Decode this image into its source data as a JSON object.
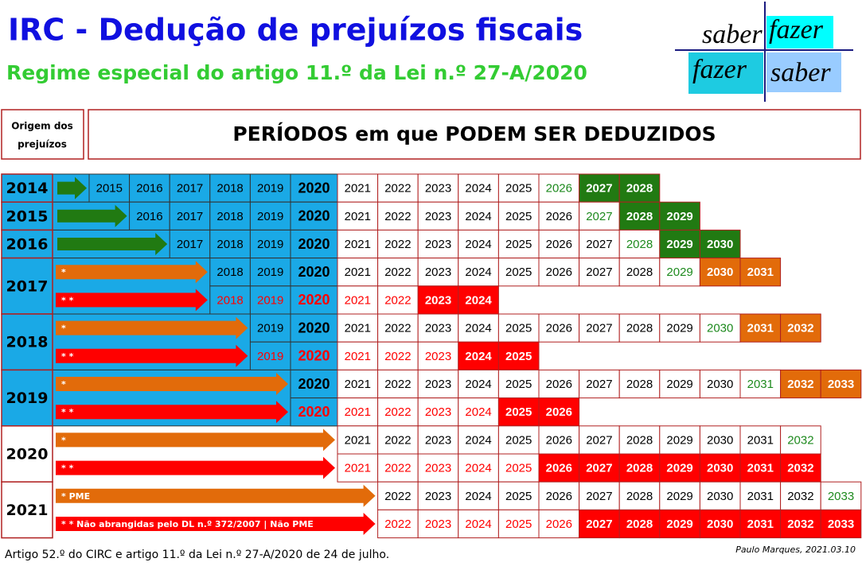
{
  "header": {
    "title": "IRC - Dedução de prejuízos fiscais",
    "subtitle": "Regime especial do artigo 11.º da Lei n.º 27-A/2020"
  },
  "logo": {
    "top_left": "saber",
    "top_right": "fazer",
    "bottom_left": "fazer",
    "bottom_right": "saber"
  },
  "table": {
    "origin_header": [
      "Origem dos",
      "prejuízos"
    ],
    "periods_header": "PERÍODOS em que PODEM SER DEDUZIDOS",
    "rows": [
      {
        "origin": "2014",
        "blue": true,
        "lines": [
          {
            "arrow": "green",
            "cells": [
              "2015",
              "2016",
              "2017",
              "2018",
              "2019",
              "2020",
              "2021",
              "2022",
              "2023",
              "2024",
              "2025",
              "2026",
              "2027",
              "2028"
            ],
            "styles": [
              "b",
              "b",
              "b",
              "b",
              "b",
              "B",
              "p",
              "p",
              "p",
              "p",
              "p",
              "g",
              "G",
              "G"
            ]
          }
        ]
      },
      {
        "origin": "2015",
        "blue": true,
        "lines": [
          {
            "arrow": "green",
            "cells": [
              "2016",
              "2017",
              "2018",
              "2019",
              "2020",
              "2021",
              "2022",
              "2023",
              "2024",
              "2025",
              "2026",
              "2027",
              "2028",
              "2029"
            ],
            "styles": [
              "b",
              "b",
              "b",
              "b",
              "B",
              "p",
              "p",
              "p",
              "p",
              "p",
              "p",
              "g",
              "G",
              "G"
            ]
          }
        ]
      },
      {
        "origin": "2016",
        "blue": true,
        "lines": [
          {
            "arrow": "green",
            "cells": [
              "2017",
              "2018",
              "2019",
              "2020",
              "2021",
              "2022",
              "2023",
              "2024",
              "2025",
              "2026",
              "2027",
              "2028",
              "2029",
              "2030"
            ],
            "styles": [
              "b",
              "b",
              "b",
              "B",
              "p",
              "p",
              "p",
              "p",
              "p",
              "p",
              "p",
              "g",
              "G",
              "G"
            ]
          }
        ]
      },
      {
        "origin": "2017",
        "blue": true,
        "lines": [
          {
            "arrow": "orange",
            "label": "*",
            "cells": [
              "2018",
              "2019",
              "2020",
              "2021",
              "2022",
              "2023",
              "2024",
              "2025",
              "2026",
              "2027",
              "2028",
              "2029",
              "2030",
              "2031"
            ],
            "styles": [
              "b",
              "b",
              "B",
              "p",
              "p",
              "p",
              "p",
              "p",
              "p",
              "p",
              "p",
              "g",
              "o",
              "o"
            ]
          },
          {
            "arrow": "red",
            "label": "* *",
            "cells": [
              "2018",
              "2019",
              "2020",
              "2021",
              "2022",
              "2023",
              "2024"
            ],
            "styles": [
              "br",
              "br",
              "BR",
              "r",
              "r",
              "R",
              "R"
            ]
          }
        ]
      },
      {
        "origin": "2018",
        "blue": true,
        "lines": [
          {
            "arrow": "orange",
            "label": "*",
            "cells": [
              "2019",
              "2020",
              "2021",
              "2022",
              "2023",
              "2024",
              "2025",
              "2026",
              "2027",
              "2028",
              "2029",
              "2030",
              "2031",
              "2032"
            ],
            "styles": [
              "b",
              "B",
              "p",
              "p",
              "p",
              "p",
              "p",
              "p",
              "p",
              "p",
              "p",
              "g",
              "o",
              "o"
            ]
          },
          {
            "arrow": "red",
            "label": "* *",
            "cells": [
              "2019",
              "2020",
              "2021",
              "2022",
              "2023",
              "2024",
              "2025"
            ],
            "styles": [
              "br",
              "BR",
              "r",
              "r",
              "r",
              "R",
              "R"
            ]
          }
        ]
      },
      {
        "origin": "2019",
        "blue": true,
        "lines": [
          {
            "arrow": "orange",
            "label": "*",
            "cells": [
              "2020",
              "2021",
              "2022",
              "2023",
              "2024",
              "2025",
              "2026",
              "2027",
              "2028",
              "2029",
              "2030",
              "2031",
              "2032",
              "2033"
            ],
            "styles": [
              "B",
              "p",
              "p",
              "p",
              "p",
              "p",
              "p",
              "p",
              "p",
              "p",
              "p",
              "g",
              "o",
              "o"
            ]
          },
          {
            "arrow": "red",
            "label": "* *",
            "cells": [
              "2020",
              "2021",
              "2022",
              "2023",
              "2024",
              "2025",
              "2026"
            ],
            "styles": [
              "BR",
              "r",
              "r",
              "r",
              "r",
              "R",
              "R"
            ]
          }
        ]
      },
      {
        "origin": "2020",
        "blue": false,
        "lines": [
          {
            "arrow": "orange",
            "label": "*",
            "cells": [
              "2021",
              "2022",
              "2023",
              "2024",
              "2025",
              "2026",
              "2027",
              "2028",
              "2029",
              "2030",
              "2031",
              "2032"
            ],
            "styles": [
              "p",
              "p",
              "p",
              "p",
              "p",
              "p",
              "p",
              "p",
              "p",
              "p",
              "p",
              "g"
            ]
          },
          {
            "arrow": "red",
            "label": "* *",
            "cells": [
              "2021",
              "2022",
              "2023",
              "2024",
              "2025",
              "2026",
              "2027",
              "2028",
              "2029",
              "2030",
              "2031",
              "2032"
            ],
            "styles": [
              "r",
              "r",
              "r",
              "r",
              "r",
              "R",
              "R",
              "R",
              "R",
              "R",
              "R",
              "R"
            ]
          }
        ]
      },
      {
        "origin": "2021",
        "blue": false,
        "lines": [
          {
            "arrow": "orange",
            "label": "* PME",
            "cells": [
              "2022",
              "2023",
              "2024",
              "2025",
              "2026",
              "2027",
              "2028",
              "2029",
              "2030",
              "2031",
              "2032",
              "2033"
            ],
            "styles": [
              "p",
              "p",
              "p",
              "p",
              "p",
              "p",
              "p",
              "p",
              "p",
              "p",
              "p",
              "g"
            ]
          },
          {
            "arrow": "red",
            "label": "* * Não abrangidas pelo DL n.º 372/2007  | Não PME",
            "cells": [
              "2022",
              "2023",
              "2024",
              "2025",
              "2026",
              "2027",
              "2028",
              "2029",
              "2030",
              "2031",
              "2032",
              "2033"
            ],
            "styles": [
              "r",
              "r",
              "r",
              "r",
              "r",
              "R",
              "R",
              "R",
              "R",
              "R",
              "R",
              "R"
            ]
          }
        ]
      }
    ]
  },
  "footer": {
    "source": "Artigo 52.º do CIRC e artigo 11.º da Lei n.º 27-A/2020 de 24 de julho.",
    "author": "Paulo Marques, 2021.03.10"
  }
}
